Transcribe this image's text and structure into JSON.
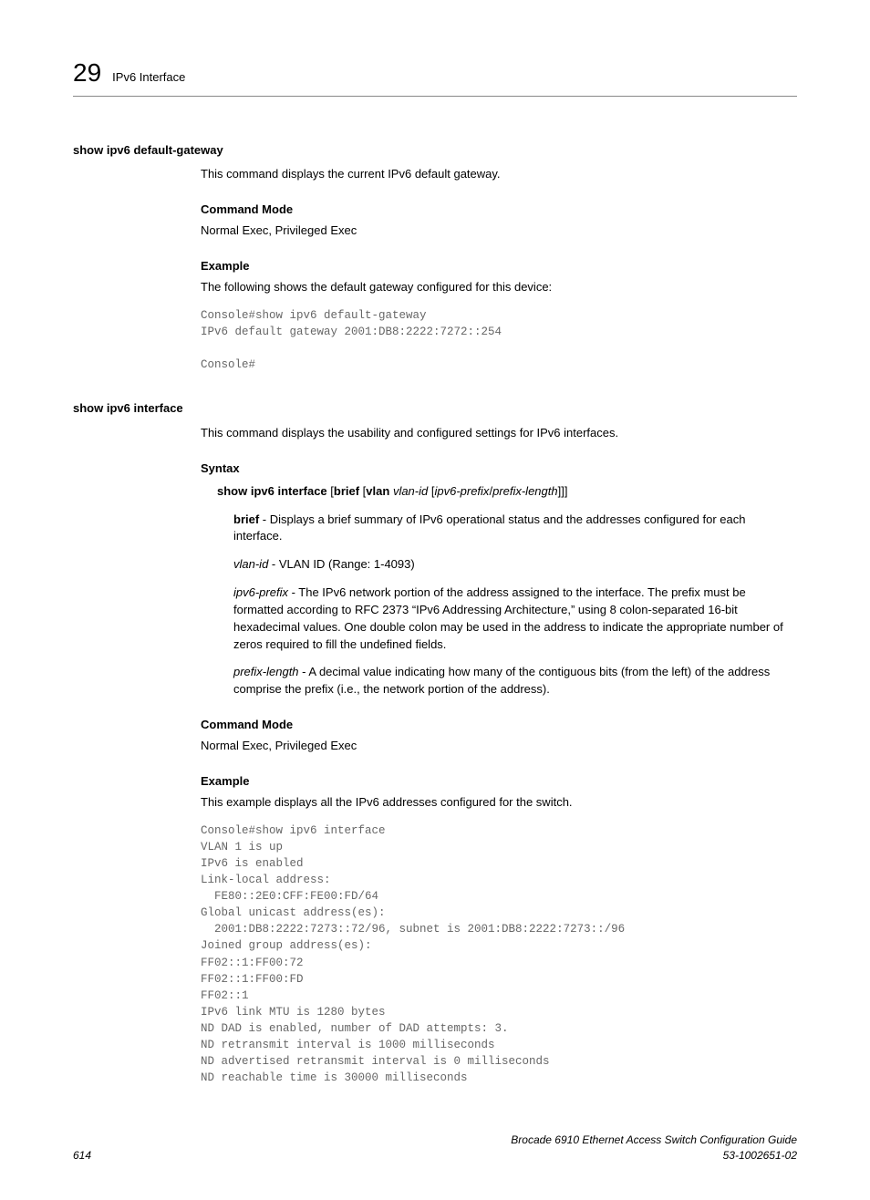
{
  "header": {
    "chapter_number": "29",
    "chapter_title": "IPv6 Interface"
  },
  "sections": [
    {
      "heading": "show ipv6 default-gateway",
      "intro": "This command displays the current IPv6 default gateway.",
      "blocks": [
        {
          "sub": "Command Mode",
          "text": "Normal Exec, Privileged Exec"
        },
        {
          "sub": "Example",
          "text": "The following shows the default gateway configured for this device:"
        }
      ],
      "code": "Console#show ipv6 default-gateway\nIPv6 default gateway 2001:DB8:2222:7272::254\n\nConsole#"
    },
    {
      "heading": "show ipv6 interface",
      "intro": "This command displays the usability and configured settings for IPv6 interfaces.",
      "syntax_heading": "Syntax",
      "syntax_cmd_b1": "show ipv6 interface",
      "syntax_cmd_t1": " [",
      "syntax_cmd_b2": "brief",
      "syntax_cmd_t2": " [",
      "syntax_cmd_b3": "vlan",
      "syntax_cmd_t3": " ",
      "syntax_cmd_i1": "vlan-id",
      "syntax_cmd_t4": " [",
      "syntax_cmd_i2": "ipv6-prefix",
      "syntax_cmd_t5": "/",
      "syntax_cmd_i3": "prefix-length",
      "syntax_cmd_t6": "]]]",
      "params": [
        {
          "bold": "brief",
          "italic": "",
          "desc": " - Displays a brief summary of IPv6 operational status and the addresses configured for each interface."
        },
        {
          "bold": "",
          "italic": "vlan-id",
          "desc": " - VLAN ID (Range: 1-4093)"
        },
        {
          "bold": "",
          "italic": "ipv6-prefix",
          "desc": " - The IPv6 network portion of the address assigned to the interface. The prefix must be formatted according to RFC 2373 “IPv6 Addressing Architecture,” using 8 colon-separated 16-bit hexadecimal values. One double colon may be used in the address to indicate the appropriate number of zeros required to fill the undefined fields."
        },
        {
          "bold": "",
          "italic": "prefix-length",
          "desc": " - A decimal value indicating how many of the contiguous bits (from the left) of the address comprise the prefix (i.e., the network portion of the address)."
        }
      ],
      "blocks2": [
        {
          "sub": "Command Mode",
          "text": "Normal Exec, Privileged Exec"
        },
        {
          "sub": "Example",
          "text": "This example displays all the IPv6 addresses configured for the switch."
        }
      ],
      "code2": "Console#show ipv6 interface\nVLAN 1 is up\nIPv6 is enabled\nLink-local address:\n  FE80::2E0:CFF:FE00:FD/64\nGlobal unicast address(es):\n  2001:DB8:2222:7273::72/96, subnet is 2001:DB8:2222:7273::/96\nJoined group address(es):\nFF02::1:FF00:72\nFF02::1:FF00:FD\nFF02::1\nIPv6 link MTU is 1280 bytes\nND DAD is enabled, number of DAD attempts: 3.\nND retransmit interval is 1000 milliseconds\nND advertised retransmit interval is 0 milliseconds\nND reachable time is 30000 milliseconds"
    }
  ],
  "footer": {
    "page": "614",
    "title": "Brocade 6910 Ethernet Access Switch Configuration Guide",
    "docnum": "53-1002651-02"
  }
}
